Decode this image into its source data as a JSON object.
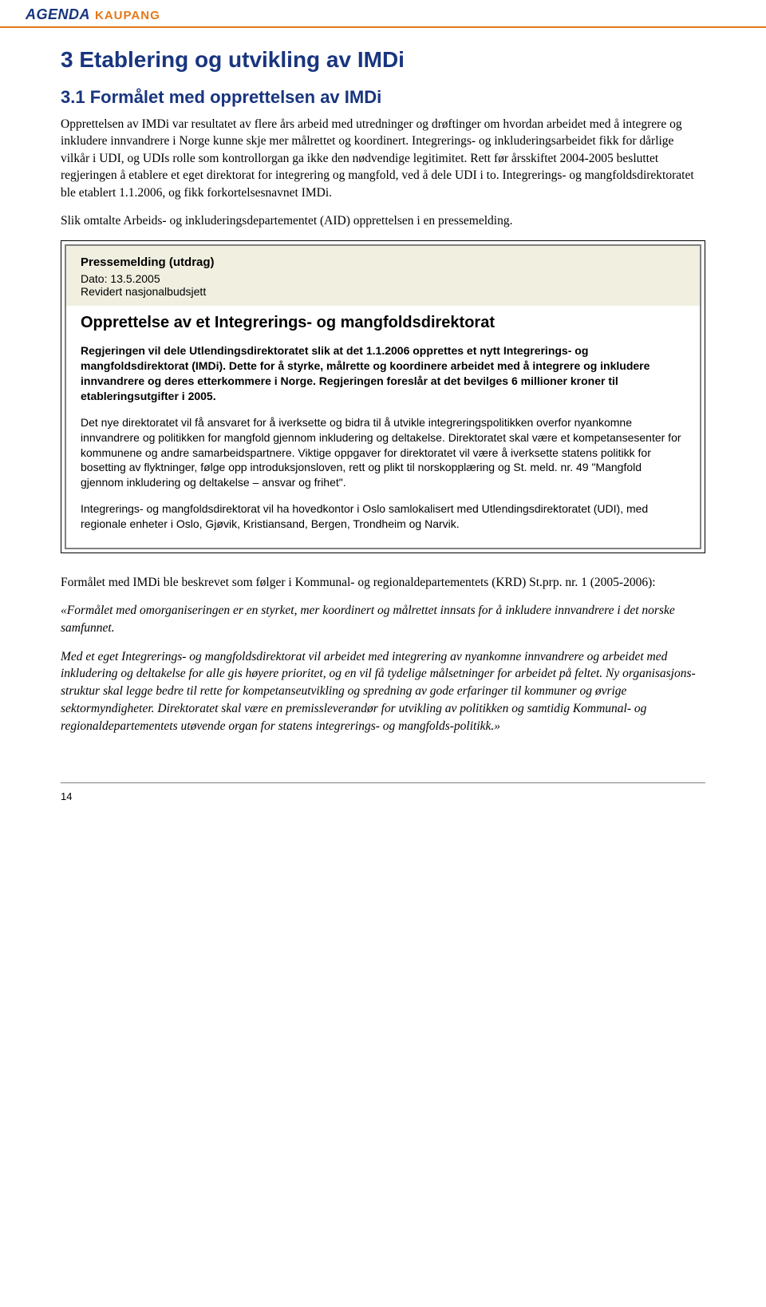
{
  "colors": {
    "header_border": "#e67817",
    "logo_agenda": "#18357f",
    "logo_kaupang": "#e67817",
    "heading": "#18357f",
    "body_text": "#000000",
    "box_outer_border": "#000000",
    "box_inner_border": "#808080",
    "box_header_bg": "#f0efe0",
    "box_text": "#000000",
    "footer_line": "#808080"
  },
  "logo": {
    "agenda": "AGENDA",
    "kaupang": "KAUPANG"
  },
  "h1": "3 Etablering og utvikling av IMDi",
  "h2": "3.1 Formålet med opprettelsen av IMDi",
  "para1": "Opprettelsen av IMDi var resultatet av flere års arbeid med utredninger og drøftinger om hvordan arbeidet med å integrere og inkludere innvandrere i Norge kunne skje mer målrettet og koordinert. Integrerings- og inkluderingsarbeidet fikk for dårlige vilkår i UDI, og UDIs rolle som kontrollorgan ga ikke den nødvendige legitimitet. Rett før årsskiftet 2004-2005 besluttet regjeringen å etablere et eget direktorat for integrering og mangfold, ved å dele UDI i to. Integrerings- og mangfoldsdirektoratet ble etablert 1.1.2006, og fikk forkortelsesnavnet IMDi.",
  "para2": "Slik omtalte Arbeids- og inkluderingsdepartementet (AID) opprettelsen i en pressemelding.",
  "box": {
    "title": "Pressemelding (utdrag)",
    "date": "Dato: 13.5.2005",
    "sub": "Revidert nasjonalbudsjett",
    "heading": "Opprettelse av et Integrerings- og mangfoldsdirektorat",
    "bold": "Regjeringen vil dele Utlendingsdirektoratet slik at det 1.1.2006 opprettes et nytt Integrerings- og mangfoldsdirektorat (IMDi). Dette for å styrke, målrette og koordinere arbeidet med å integrere og inkludere innvandrere og deres etterkommere i Norge. Regjeringen foreslår at det bevilges 6 millioner kroner til etableringsutgifter i 2005.",
    "p1": "Det nye direktoratet vil få ansvaret for å iverksette og bidra til å utvikle integreringspolitikken overfor nyankomne innvandrere og politikken for mangfold gjennom inkludering og deltakelse. Direktoratet skal være et kompetansesenter for kommunene og andre samarbeidspartnere. Viktige oppgaver for direktoratet vil være å iverksette statens politikk for bosetting av flyktninger, følge opp introduksjonsloven, rett og plikt til norskopplæring og St. meld. nr. 49 \"Mangfold gjennom inkludering og deltakelse – ansvar og frihet\".",
    "p2": "Integrerings- og mangfoldsdirektorat vil ha hovedkontor i Oslo samlokalisert med Utlendingsdirektoratet (UDI), med regionale enheter i Oslo, Gjøvik, Kristiansand, Bergen, Trondheim og Narvik."
  },
  "para3": "Formålet med IMDi ble beskrevet som følger i Kommunal- og regionaldepartementets (KRD) St.prp. nr. 1 (2005-2006):",
  "quote1": "«Formålet med omorganiseringen er en styrket, mer koordinert og målrettet innsats for å inkludere innvandrere i det norske samfunnet.",
  "quote2": "Med et eget Integrerings- og mangfoldsdirektorat vil arbeidet med integrering av nyankomne innvandrere og arbeidet med inkludering og deltakelse for alle gis høyere prioritet, og en vil få tydelige målsetninger for arbeidet på feltet. Ny organisasjons-struktur skal legge bedre til rette for kompetanseutvikling og spredning av gode erfaringer til kommuner og øvrige sektormyndigheter. Direktoratet skal være en premissleverandør for utvikling av politikken og samtidig Kommunal- og regionaldepartementets utøvende organ for statens integrerings- og mangfolds-politikk.»",
  "pagenum": "14"
}
